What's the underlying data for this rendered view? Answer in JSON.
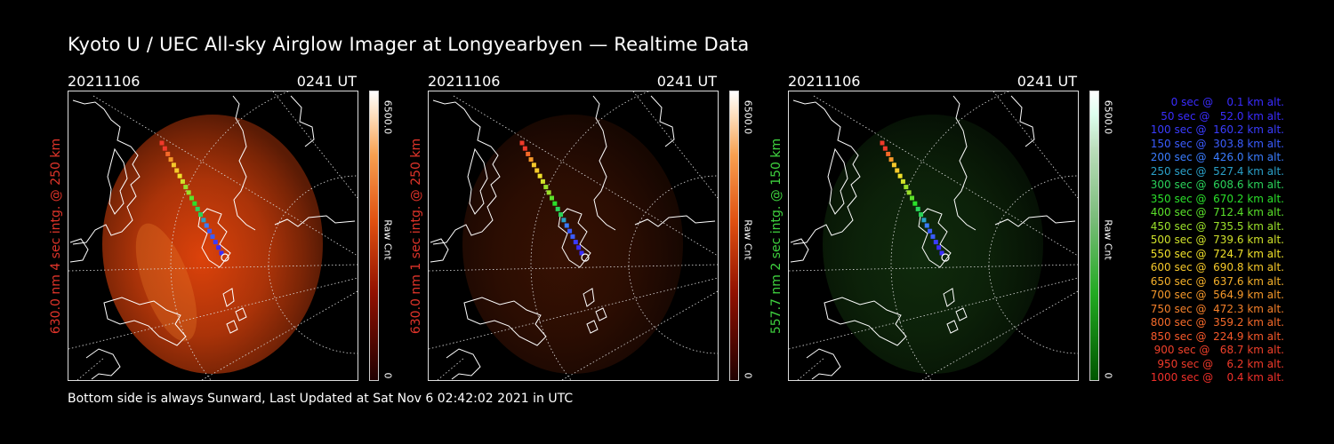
{
  "title": "Kyoto U / UEC All-sky Airglow Imager at Longyearbyen — Realtime Data",
  "panels": [
    {
      "date": "20211106",
      "time": "0241 UT",
      "side_label": "630.0 nm 4 sec intg. @ 250 km",
      "label_color": "#e0342a",
      "cbar_max": "6500.0",
      "cbar_unit": "Raw Cnt",
      "cbar_min": "0",
      "glow": "red",
      "brightness": 1.0
    },
    {
      "date": "20211106",
      "time": "0241 UT",
      "side_label": "630.0 nm 1 sec intg. @ 250 km",
      "label_color": "#e0342a",
      "cbar_max": "6500.0",
      "cbar_unit": "Raw Cnt",
      "cbar_min": "0",
      "glow": "red",
      "brightness": 0.25
    },
    {
      "date": "20211106",
      "time": "0241 UT",
      "side_label": "557.7 nm 2 sec intg. @ 150 km",
      "label_color": "#3fd23f",
      "cbar_max": "6500.0",
      "cbar_unit": "Raw Cnt",
      "cbar_min": "0",
      "glow": "green",
      "brightness": 0.35
    }
  ],
  "footer": "Bottom side is always Sunward, Last Updated at Sat Nov  6 02:42:02 2021 in UTC",
  "legend": [
    {
      "text": "   0 sec @    0.1 km alt.",
      "color": "#3a2cff"
    },
    {
      "text": "  50 sec @   52.0 km alt.",
      "color": "#3a2cff"
    },
    {
      "text": " 100 sec @  160.2 km alt.",
      "color": "#3a3cff"
    },
    {
      "text": " 150 sec @  303.8 km alt.",
      "color": "#3a5cff"
    },
    {
      "text": " 200 sec @  426.0 km alt.",
      "color": "#3a7cff"
    },
    {
      "text": " 250 sec @  527.4 km alt.",
      "color": "#2aa0c8"
    },
    {
      "text": " 300 sec @  608.6 km alt.",
      "color": "#2ad25a"
    },
    {
      "text": " 350 sec @  670.2 km alt.",
      "color": "#2ae02a"
    },
    {
      "text": " 400 sec @  712.4 km alt.",
      "color": "#5ae02a"
    },
    {
      "text": " 450 sec @  735.5 km alt.",
      "color": "#9ae02a"
    },
    {
      "text": " 500 sec @  739.6 km alt.",
      "color": "#cfe02a"
    },
    {
      "text": " 550 sec @  724.7 km alt.",
      "color": "#f0e02a"
    },
    {
      "text": " 600 sec @  690.8 km alt.",
      "color": "#f5c82a"
    },
    {
      "text": " 650 sec @  637.6 km alt.",
      "color": "#f5b02a"
    },
    {
      "text": " 700 sec @  564.9 km alt.",
      "color": "#f5982a"
    },
    {
      "text": " 750 sec @  472.3 km alt.",
      "color": "#f5802a"
    },
    {
      "text": " 800 sec @  359.2 km alt.",
      "color": "#f56a2a"
    },
    {
      "text": " 850 sec @  224.9 km alt.",
      "color": "#f5582a"
    },
    {
      "text": " 900 sec @   68.7 km alt.",
      "color": "#f0402a"
    },
    {
      "text": " 950 sec @    6.2 km alt.",
      "color": "#f03a2a"
    },
    {
      "text": "1000 sec @    0.4 km alt.",
      "color": "#f0302a"
    }
  ]
}
